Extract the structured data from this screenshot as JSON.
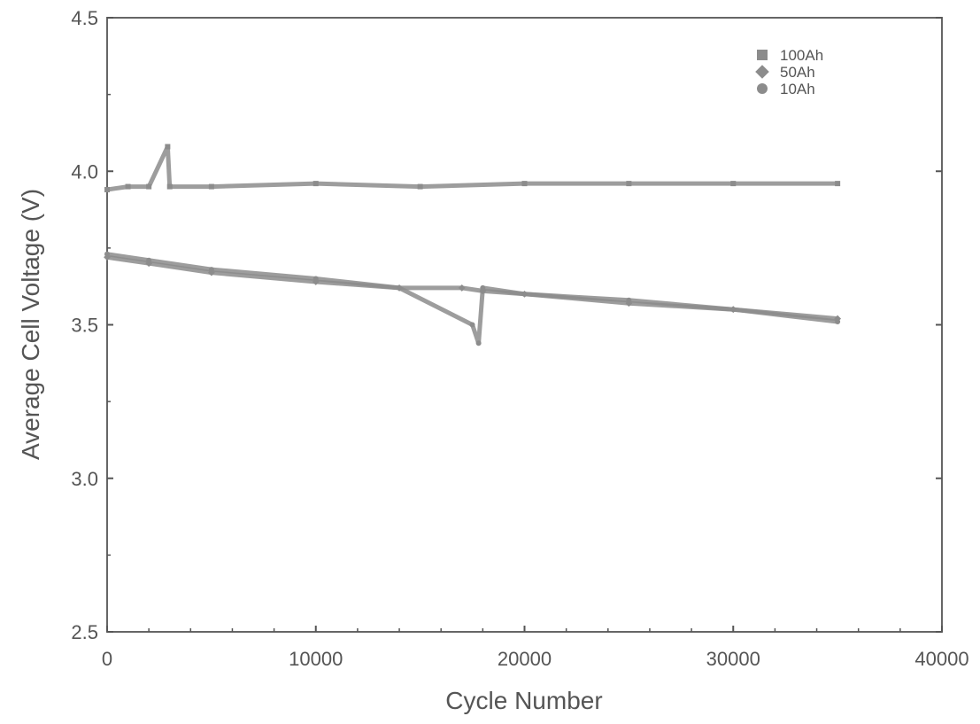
{
  "chart_data": {
    "type": "scatter",
    "title": "",
    "xlabel": "Cycle Number",
    "ylabel": "Average Cell Voltage (V)",
    "xlim": [
      0,
      40000
    ],
    "ylim": [
      2.5,
      4.5
    ],
    "xticks": [
      0,
      10000,
      20000,
      30000,
      40000
    ],
    "xtick_labels": [
      "0",
      "10000",
      "20000",
      "30000",
      "40000"
    ],
    "yticks": [
      2.5,
      3.0,
      3.5,
      4.0,
      4.5
    ],
    "ytick_labels": [
      "2.5",
      "3.0",
      "3.5",
      "4.0",
      "4.5"
    ],
    "grid": false,
    "legend_position": "top-right",
    "colors": {
      "series": "#8c8c8c",
      "axis": "#555555"
    },
    "series": [
      {
        "name": "100Ah",
        "marker": "square",
        "x": [
          0,
          1000,
          2000,
          2900,
          3000,
          5000,
          10000,
          15000,
          20000,
          25000,
          30000,
          35000
        ],
        "y": [
          3.94,
          3.95,
          3.95,
          4.08,
          3.95,
          3.95,
          3.96,
          3.95,
          3.96,
          3.96,
          3.96,
          3.96
        ]
      },
      {
        "name": "50Ah",
        "marker": "diamond",
        "x": [
          0,
          2000,
          5000,
          10000,
          14000,
          17000,
          18000,
          20000,
          25000,
          30000,
          35000
        ],
        "y": [
          3.72,
          3.7,
          3.67,
          3.64,
          3.62,
          3.62,
          3.61,
          3.6,
          3.57,
          3.55,
          3.52
        ]
      },
      {
        "name": "10Ah",
        "marker": "circle",
        "x": [
          0,
          2000,
          5000,
          10000,
          14000,
          17500,
          17800,
          18000,
          20000,
          25000,
          30000,
          35000
        ],
        "y": [
          3.73,
          3.71,
          3.68,
          3.65,
          3.62,
          3.5,
          3.44,
          3.62,
          3.6,
          3.58,
          3.55,
          3.51
        ]
      }
    ]
  }
}
